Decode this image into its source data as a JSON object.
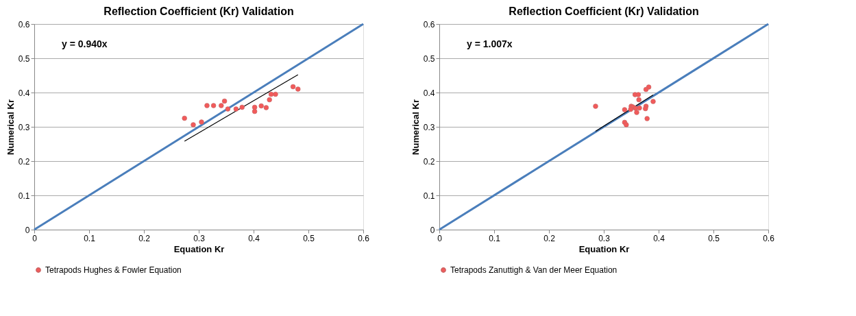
{
  "chart_data": [
    {
      "type": "scatter",
      "title": "Reflection Coefficient (Kr) Validation",
      "xlabel": "Equation Kr",
      "ylabel": "Numerical  Kr",
      "xlim": [
        0,
        0.6
      ],
      "ylim": [
        0,
        0.6
      ],
      "xticks": [
        0,
        0.1,
        0.2,
        0.3,
        0.4,
        0.5,
        0.6
      ],
      "yticks": [
        0,
        0.1,
        0.2,
        0.3,
        0.4,
        0.5,
        0.6
      ],
      "grid": "y",
      "legend": "bottom",
      "annotations": [
        "y = 0.940x"
      ],
      "series": [
        {
          "type": "line",
          "color": "#4a7ebb",
          "x": [
            0,
            0.6
          ],
          "values": [
            0,
            0.6
          ]
        },
        {
          "type": "line",
          "color": "#000000",
          "x": [
            0.274,
            0.481
          ],
          "values": [
            0.258,
            0.452
          ]
        },
        {
          "name": "Tetrapods Hughes & Fowler Equation",
          "color": "#f25a5a",
          "marker": "circle",
          "x": [
            0.274,
            0.29,
            0.305,
            0.315,
            0.327,
            0.341,
            0.347,
            0.353,
            0.368,
            0.379,
            0.402,
            0.402,
            0.414,
            0.423,
            0.429,
            0.432,
            0.44,
            0.472,
            0.481
          ],
          "values": [
            0.325,
            0.306,
            0.314,
            0.362,
            0.362,
            0.362,
            0.375,
            0.352,
            0.352,
            0.357,
            0.357,
            0.345,
            0.361,
            0.356,
            0.379,
            0.395,
            0.395,
            0.417,
            0.41
          ]
        }
      ]
    },
    {
      "type": "scatter",
      "title": "Reflection Coefficient (Kr) Validation",
      "xlabel": "Equation Kr",
      "ylabel": "Numerical  Kr",
      "xlim": [
        0,
        0.6
      ],
      "ylim": [
        0,
        0.6
      ],
      "xticks": [
        0,
        0.1,
        0.2,
        0.3,
        0.4,
        0.5,
        0.6
      ],
      "yticks": [
        0,
        0.1,
        0.2,
        0.3,
        0.4,
        0.5,
        0.6
      ],
      "grid": "y",
      "legend": "bottom",
      "annotations": [
        "y = 1.007x"
      ],
      "series": [
        {
          "type": "line",
          "color": "#4a7ebb",
          "x": [
            0,
            0.6
          ],
          "values": [
            0,
            0.6
          ]
        },
        {
          "type": "line",
          "color": "#000000",
          "x": [
            0.285,
            0.39
          ],
          "values": [
            0.287,
            0.393
          ]
        },
        {
          "name": "Tetrapods Zanuttigh & Van der Meer Equation",
          "color": "#f25a5a",
          "marker": "circle",
          "x": [
            0.285,
            0.382,
            0.377,
            0.357,
            0.363,
            0.364,
            0.39,
            0.35,
            0.353,
            0.338,
            0.349,
            0.358,
            0.365,
            0.36,
            0.377,
            0.376,
            0.379,
            0.338,
            0.341
          ],
          "values": [
            0.36,
            0.416,
            0.409,
            0.394,
            0.394,
            0.379,
            0.374,
            0.36,
            0.358,
            0.35,
            0.351,
            0.354,
            0.355,
            0.342,
            0.36,
            0.353,
            0.324,
            0.313,
            0.306
          ]
        }
      ]
    }
  ]
}
